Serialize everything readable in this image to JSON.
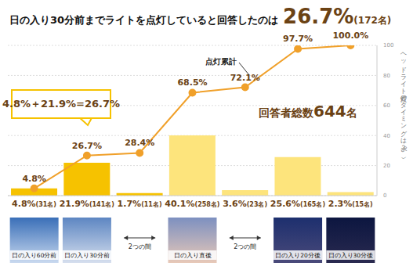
{
  "chart_data": {
    "type": "bar",
    "title": "日の入り30分前までライトを点灯していると回答したのは",
    "title_value": "26.7%",
    "title_note": "(172名)",
    "categories": [
      "日の入り60分前",
      "日の入り30分前",
      null,
      "日の入り直後",
      null,
      "日の入り20分後",
      "日の入り30分後"
    ],
    "between_label": "2つの間",
    "series": [
      {
        "type": "bar",
        "colors": [
          "#f6c200",
          "#f6c200",
          "#f6c200",
          "#fde47c",
          "#fde47c",
          "#fde47c",
          "#fde47c"
        ],
        "values": [
          4.8,
          21.9,
          1.7,
          40.1,
          3.6,
          25.6,
          2.3
        ],
        "value_labels": [
          "4.8%(31名)",
          "21.9%(141名)",
          "1.7%(11名)",
          "40.1%(258名)",
          "3.6%(23名)",
          "25.6%(165名)",
          "2.3%(15名)"
        ]
      },
      {
        "name": "点灯累計",
        "type": "line",
        "color": "#f0a02a",
        "marker": "circle",
        "values": [
          4.8,
          26.7,
          28.4,
          68.5,
          72.1,
          97.7,
          100.0
        ],
        "value_labels": [
          "4.8%",
          "26.7%",
          "28.4%",
          "68.5%",
          "72.1%",
          "97.7%",
          "100.0%"
        ]
      }
    ],
    "y_label": "ヘッドライト点灯のタイミングは？（%）",
    "ylim": [
      0,
      100
    ],
    "yticks": [
      0,
      20,
      40,
      60,
      80,
      100
    ],
    "grid": true,
    "data_labels": true,
    "annotations": [
      "4.8%＋21.9%=26.7%",
      "回答者総数644名"
    ]
  }
}
